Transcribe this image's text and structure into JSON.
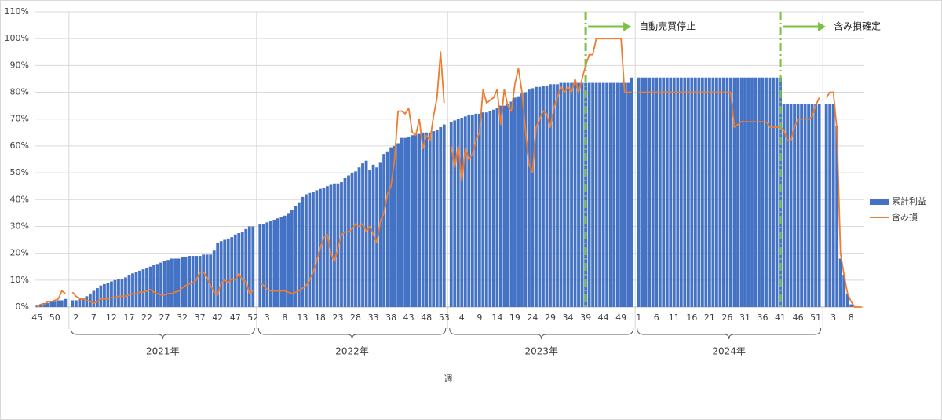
{
  "chart_data": {
    "type": "combo",
    "x_label": "週",
    "legend": "right",
    "grid": true,
    "ylim": [
      0,
      110
    ],
    "yticks": [
      {
        "value": 0,
        "label": "0%"
      },
      {
        "value": 10,
        "label": "10%"
      },
      {
        "value": 20,
        "label": "20%"
      },
      {
        "value": 30,
        "label": "30%"
      },
      {
        "value": 40,
        "label": "40%"
      },
      {
        "value": 50,
        "label": "50%"
      },
      {
        "value": 60,
        "label": "60%"
      },
      {
        "value": 70,
        "label": "70%"
      },
      {
        "value": 80,
        "label": "80%"
      },
      {
        "value": 90,
        "label": "90%"
      },
      {
        "value": 100,
        "label": "100%"
      },
      {
        "value": 110,
        "label": "110%"
      }
    ],
    "series": [
      {
        "name": "累計利益",
        "color": "#4472c4",
        "mark": "bar"
      },
      {
        "name": "含み損",
        "color": "#ed7d31",
        "mark": "line"
      }
    ],
    "periods": [
      {
        "categories": [
          45,
          null,
          null,
          null,
          null,
          50,
          null,
          null,
          null
        ],
        "values": [
          [
            0.5,
            1,
            1.5,
            1.5,
            2,
            2,
            2.5,
            2.5,
            3
          ],
          [
            0,
            1,
            1,
            2,
            2,
            2.5,
            3,
            6,
            5
          ]
        ]
      },
      {
        "label": "2021年",
        "categories": [
          null,
          2,
          null,
          null,
          null,
          null,
          7,
          null,
          null,
          null,
          null,
          12,
          null,
          null,
          null,
          null,
          17,
          null,
          null,
          null,
          null,
          22,
          null,
          null,
          null,
          null,
          27,
          null,
          null,
          null,
          null,
          32,
          null,
          null,
          null,
          null,
          37,
          null,
          null,
          null,
          null,
          42,
          null,
          null,
          null,
          null,
          47,
          null,
          null,
          null,
          null,
          52
        ],
        "values": [
          [
            2.5,
            2.5,
            3,
            3.5,
            4,
            5,
            6,
            7,
            8,
            8.5,
            9,
            9.5,
            10,
            10.5,
            10.5,
            11,
            12,
            12.5,
            13,
            13.5,
            14,
            14.5,
            15,
            15.5,
            16,
            16.5,
            17,
            17.5,
            18,
            18,
            18,
            18.5,
            18.5,
            19,
            19,
            19,
            19,
            19.5,
            19.5,
            19.5,
            21,
            24,
            24.5,
            25,
            25.5,
            26,
            27,
            27.5,
            28,
            29,
            30,
            30
          ],
          [
            5.5,
            4,
            3,
            3,
            2.5,
            2,
            1.5,
            2,
            3,
            3,
            3,
            3.5,
            3.5,
            4,
            4,
            4,
            4.5,
            5,
            5,
            5.5,
            5.5,
            6,
            6.5,
            5.5,
            5,
            4.5,
            4.5,
            5,
            5,
            5.5,
            6,
            7,
            8,
            8.5,
            9,
            10,
            13,
            13,
            11,
            8,
            5.5,
            4.5,
            9,
            10,
            9,
            10.5,
            10,
            12.5,
            10,
            9.5,
            5,
            6
          ]
        ]
      },
      {
        "label": "2022年",
        "categories": [
          null,
          null,
          3,
          null,
          null,
          null,
          null,
          8,
          null,
          null,
          null,
          null,
          13,
          null,
          null,
          null,
          null,
          18,
          null,
          null,
          null,
          null,
          23,
          null,
          null,
          null,
          null,
          28,
          null,
          null,
          null,
          null,
          33,
          null,
          null,
          null,
          null,
          38,
          null,
          null,
          null,
          null,
          43,
          null,
          null,
          null,
          null,
          48,
          null,
          null,
          null,
          null,
          53
        ],
        "values": [
          [
            31,
            31,
            31.5,
            32,
            32.5,
            33,
            33.5,
            34,
            35,
            36,
            37.5,
            39,
            41,
            42,
            42.5,
            43,
            43.5,
            44,
            44.5,
            45,
            45.5,
            46,
            46,
            46.5,
            48,
            49,
            50,
            50.5,
            52,
            53.5,
            54.5,
            51,
            53,
            52,
            54,
            57,
            58,
            59.5,
            60,
            61,
            63,
            63,
            63.5,
            64,
            64.5,
            64.5,
            65,
            65,
            65,
            65.5,
            66,
            67,
            68
          ],
          [
            9,
            8,
            6.5,
            6,
            6,
            6,
            6,
            6,
            5.5,
            5,
            5.5,
            6,
            7,
            8,
            10,
            13,
            17,
            22,
            26,
            27,
            20,
            17,
            22,
            27,
            28,
            28,
            29,
            31,
            30,
            31,
            28,
            30,
            27,
            24,
            32,
            35,
            42,
            45,
            55,
            73,
            73,
            72,
            74,
            65,
            64,
            70,
            59,
            64,
            62,
            71,
            78,
            95,
            76
          ]
        ]
      },
      {
        "label": "2023年",
        "categories": [
          null,
          null,
          null,
          4,
          null,
          null,
          null,
          null,
          9,
          null,
          null,
          null,
          null,
          14,
          null,
          null,
          null,
          null,
          19,
          null,
          null,
          null,
          null,
          24,
          null,
          null,
          null,
          null,
          29,
          null,
          null,
          null,
          null,
          34,
          null,
          null,
          null,
          null,
          39,
          null,
          null,
          null,
          null,
          44,
          null,
          null,
          null,
          null,
          49,
          null,
          null,
          null
        ],
        "values": [
          [
            69,
            69.5,
            70,
            70.5,
            71,
            71.5,
            71.5,
            72,
            72,
            72.5,
            72.5,
            73,
            73.5,
            74,
            75,
            75,
            75.5,
            76.5,
            78,
            78.5,
            79.5,
            80,
            81,
            81.5,
            82,
            82,
            82.5,
            82.5,
            83,
            83,
            83,
            83.5,
            83.5,
            83.5,
            83.5,
            83.5,
            83.5,
            83.5,
            83.5,
            83.5,
            83.5,
            83.5,
            83.5,
            83.5,
            83.5,
            83.5,
            83.5,
            83.5,
            83.5,
            83.5,
            83.5,
            85.5
          ],
          [
            60,
            52,
            60,
            47,
            59,
            55,
            57,
            62,
            65,
            81,
            76,
            77,
            78,
            81,
            68,
            81,
            75,
            73,
            83,
            89,
            80,
            66,
            53,
            50,
            67,
            70,
            73,
            72,
            67,
            74,
            78,
            82,
            80,
            82,
            80,
            85,
            80,
            85,
            90,
            94,
            94,
            100,
            100,
            100,
            100,
            100,
            100,
            100,
            100,
            80,
            80,
            80
          ]
        ]
      },
      {
        "label": "2024年",
        "categories": [
          1,
          null,
          null,
          null,
          null,
          6,
          null,
          null,
          null,
          null,
          11,
          null,
          null,
          null,
          null,
          16,
          null,
          null,
          null,
          null,
          21,
          null,
          null,
          null,
          null,
          26,
          null,
          null,
          null,
          null,
          31,
          null,
          null,
          null,
          null,
          36,
          null,
          null,
          null,
          null,
          41,
          null,
          null,
          null,
          null,
          46,
          null,
          null,
          null,
          null,
          51,
          null
        ],
        "values": [
          [
            85.5,
            85.5,
            85.5,
            85.5,
            85.5,
            85.5,
            85.5,
            85.5,
            85.5,
            85.5,
            85.5,
            85.5,
            85.5,
            85.5,
            85.5,
            85.5,
            85.5,
            85.5,
            85.5,
            85.5,
            85.5,
            85.5,
            85.5,
            85.5,
            85.5,
            85.5,
            85.5,
            85.5,
            85.5,
            85.5,
            85.5,
            85.5,
            85.5,
            85.5,
            85.5,
            85.5,
            85.5,
            85.5,
            85.5,
            85.5,
            85.5,
            75.5,
            75.5,
            75.5,
            75.5,
            75.5,
            75.5,
            75.5,
            75.5,
            75.5,
            75.5,
            75.5
          ],
          [
            80,
            80,
            80,
            80,
            80,
            80,
            80,
            80,
            80,
            80,
            80,
            80,
            80,
            80,
            80,
            80,
            80,
            80,
            80,
            80,
            80,
            80,
            80,
            80,
            80,
            80,
            80,
            67,
            68,
            69,
            69,
            69,
            69,
            69,
            69,
            69,
            69,
            67,
            67,
            67,
            67,
            66,
            62,
            62,
            67,
            70,
            70,
            70,
            70,
            71,
            75,
            78
          ]
        ]
      },
      {
        "categories": [
          null,
          null,
          3,
          null,
          null,
          null,
          null,
          8,
          null,
          null,
          null
        ],
        "values": [
          [
            75.5,
            75.5,
            75.5,
            67.5,
            18,
            12,
            5,
            1,
            0,
            0,
            0
          ],
          [
            78,
            80,
            80,
            66,
            20,
            12,
            5,
            2,
            0,
            0,
            0
          ]
        ]
      }
    ],
    "annotations": [
      {
        "text": "自動売買停止",
        "year": "2023年",
        "week": 39,
        "color": "#7dc142"
      },
      {
        "text": "含み損確定",
        "year": "2024年",
        "week": 41,
        "color": "#7dc142"
      }
    ]
  }
}
